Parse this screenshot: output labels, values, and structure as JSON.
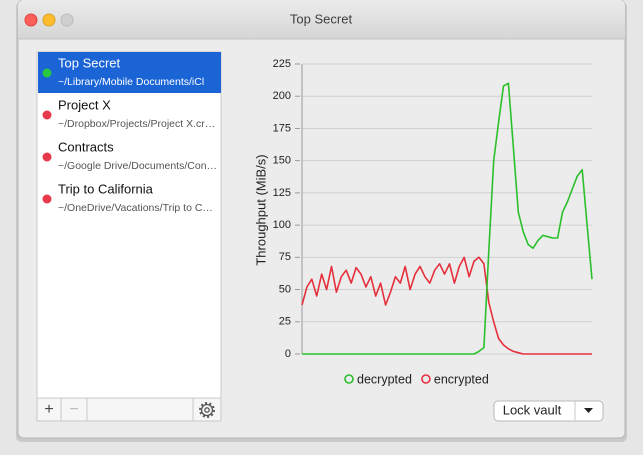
{
  "window": {
    "title": "Top Secret"
  },
  "sidebar": {
    "items": [
      {
        "name": "Top Secret",
        "path": "~/Library/Mobile Documents/iCl",
        "color": "#28c840",
        "selected": true
      },
      {
        "name": "Project X",
        "path": "~/Dropbox/Projects/Project X.cr…",
        "color": "#e8394a",
        "selected": false
      },
      {
        "name": "Contracts",
        "path": "~/Google Drive/Documents/Con…",
        "color": "#e8394a",
        "selected": false
      },
      {
        "name": "Trip to California",
        "path": "~/OneDrive/Vacations/Trip to C…",
        "color": "#e8394a",
        "selected": false
      }
    ],
    "add": "+",
    "remove": "−"
  },
  "chart_data": {
    "type": "line",
    "y_label": "Throughput (MiB/s)",
    "ylim": [
      0,
      225
    ],
    "yticks": [
      0,
      25,
      50,
      75,
      100,
      125,
      150,
      175,
      200,
      225
    ],
    "grid": true,
    "series": [
      {
        "name": "decrypted",
        "color": "#2bc02b",
        "values": [
          0,
          0,
          0,
          0,
          0,
          0,
          0,
          0,
          0,
          0,
          0,
          0,
          0,
          0,
          0,
          0,
          0,
          0,
          0,
          0,
          0,
          0,
          0,
          0,
          0,
          0,
          0,
          0,
          0,
          0,
          0,
          0,
          0,
          0,
          0,
          0,
          2,
          5,
          80,
          150,
          180,
          208,
          210,
          160,
          110,
          95,
          85,
          82,
          88,
          92,
          91,
          90,
          90,
          110,
          118,
          128,
          138,
          143,
          100,
          58
        ]
      },
      {
        "name": "encrypted",
        "color": "#e5303c",
        "values": [
          38,
          52,
          58,
          45,
          62,
          50,
          68,
          48,
          60,
          65,
          55,
          67,
          62,
          52,
          60,
          45,
          55,
          38,
          48,
          60,
          55,
          68,
          50,
          62,
          68,
          60,
          55,
          65,
          70,
          62,
          70,
          55,
          68,
          75,
          60,
          72,
          75,
          70,
          40,
          25,
          12,
          7,
          4,
          2,
          1,
          0,
          0,
          0,
          0,
          0,
          0,
          0,
          0,
          0,
          0,
          0,
          0,
          0,
          0,
          0
        ]
      }
    ]
  },
  "lock_button": "Lock vault"
}
